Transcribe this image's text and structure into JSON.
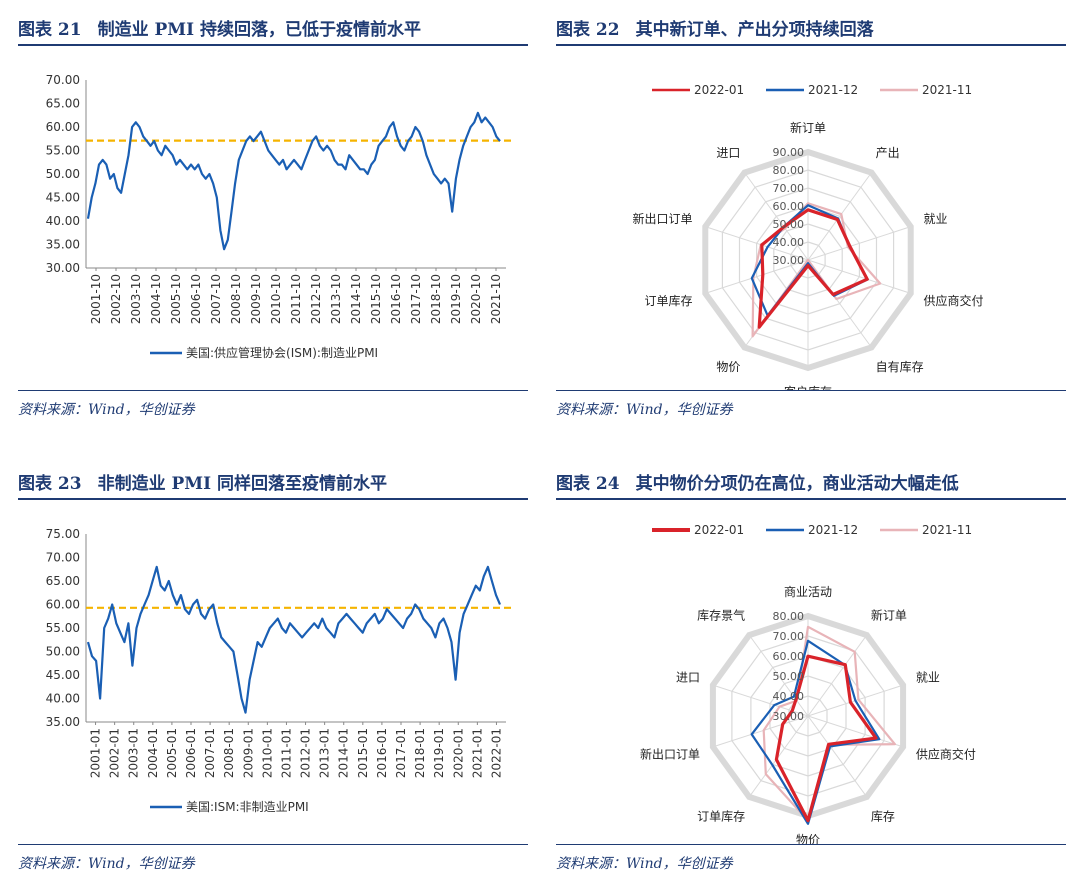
{
  "panels": [
    {
      "id": "p1",
      "title_num": "图表 21",
      "title_text": "制造业 PMI 持续回落，已低于疫情前水平",
      "source": "资料来源：Wind，华创证券"
    },
    {
      "id": "p2",
      "title_num": "图表 22",
      "title_text": "其中新订单、产出分项持续回落",
      "source": "资料来源：Wind，华创证券"
    },
    {
      "id": "p3",
      "title_num": "图表 23",
      "title_text": "非制造业 PMI 同样回落至疫情前水平",
      "source": "资料来源：Wind，华创证券"
    },
    {
      "id": "p4",
      "title_num": "图表 24",
      "title_text": "其中物价分项仍在高位，商业活动大幅走低",
      "source": "资料来源：Wind，华创证券"
    }
  ],
  "chart_data": [
    {
      "type": "line",
      "panel": "p1",
      "ylim": [
        30,
        70
      ],
      "yticks": [
        "70.00",
        "65.00",
        "60.00",
        "55.00",
        "50.00",
        "45.00",
        "40.00",
        "35.00",
        "30.00"
      ],
      "x_labels": [
        "2001-10",
        "2002-10",
        "2003-10",
        "2004-10",
        "2005-10",
        "2006-10",
        "2007-10",
        "2008-10",
        "2009-10",
        "2010-10",
        "2011-10",
        "2012-10",
        "2013-10",
        "2014-10",
        "2015-10",
        "2016-10",
        "2017-10",
        "2018-10",
        "2019-10",
        "2020-10",
        "2021-10"
      ],
      "series": [
        {
          "name": "美国:供应管理协会(ISM):制造业PMI",
          "color": "#1a5fb4",
          "values": [
            40.5,
            45,
            48,
            52,
            53,
            52,
            49,
            50,
            47,
            46,
            50,
            54,
            60,
            61,
            60,
            58,
            57,
            56,
            57,
            55,
            54,
            56,
            55,
            54,
            52,
            53,
            52,
            51,
            52,
            51,
            52,
            50,
            49,
            50,
            48,
            45,
            38,
            34,
            36,
            42,
            48,
            53,
            55,
            57,
            58,
            57,
            58,
            59,
            57,
            55,
            54,
            53,
            52,
            53,
            51,
            52,
            53,
            52,
            51,
            53,
            55,
            57,
            58,
            56,
            55,
            56,
            55,
            53,
            52,
            52,
            51,
            54,
            53,
            52,
            51,
            51,
            50,
            52,
            53,
            56,
            57,
            58,
            60,
            61,
            58,
            56,
            55,
            57,
            58,
            60,
            59,
            57,
            54,
            52,
            50,
            49,
            48,
            49,
            48,
            42,
            49,
            53,
            56,
            58,
            60,
            61,
            63,
            61,
            62,
            61,
            60,
            58,
            57
          ],
          "baseline": 57.1,
          "baseline_color": "#f5b400"
        }
      ]
    },
    {
      "type": "radar",
      "panel": "p2",
      "categories": [
        "新订单",
        "产出",
        "就业",
        "供应商交付",
        "自有库存",
        "客户库存",
        "物价",
        "订单库存",
        "新出口订单",
        "进口"
      ],
      "rlim": [
        30,
        90
      ],
      "rticks": [
        "30.00",
        "40.00",
        "50.00",
        "60.00",
        "70.00",
        "80.00",
        "90.00"
      ],
      "series": [
        {
          "name": "2022-01",
          "color": "#d9232a",
          "values": [
            57.9,
            57.8,
            54.5,
            64.6,
            53.7,
            33.1,
            76.1,
            56.4,
            57.0,
            52.8
          ]
        },
        {
          "name": "2021-12",
          "color": "#1a5fb4",
          "values": [
            60.4,
            58.5,
            54.2,
            64.9,
            54.6,
            31.8,
            68.2,
            62.8,
            53.6,
            52.9
          ]
        },
        {
          "name": "2021-11",
          "color": "#e8b4b8",
          "values": [
            61.5,
            61.5,
            53.3,
            72.2,
            56.8,
            25.1,
            82.4,
            61.9,
            57.6,
            51.6
          ]
        }
      ]
    },
    {
      "type": "line",
      "panel": "p3",
      "ylim": [
        35,
        75
      ],
      "yticks": [
        "75.00",
        "70.00",
        "65.00",
        "60.00",
        "55.00",
        "50.00",
        "45.00",
        "40.00",
        "35.00"
      ],
      "x_labels": [
        "2001-01",
        "2002-01",
        "2003-01",
        "2004-01",
        "2005-01",
        "2006-01",
        "2007-01",
        "2008-01",
        "2009-01",
        "2010-01",
        "2011-01",
        "2012-01",
        "2013-01",
        "2014-01",
        "2015-01",
        "2016-01",
        "2017-01",
        "2018-01",
        "2019-01",
        "2020-01",
        "2021-01",
        "2022-01"
      ],
      "series": [
        {
          "name": "美国:ISM:非制造业PMI",
          "color": "#1a5fb4",
          "values": [
            52,
            49,
            48,
            40,
            55,
            57,
            60,
            56,
            54,
            52,
            56,
            47,
            55,
            58,
            60,
            62,
            65,
            68,
            64,
            63,
            65,
            62,
            60,
            62,
            59,
            58,
            60,
            61,
            58,
            57,
            59,
            60,
            56,
            53,
            52,
            51,
            50,
            45,
            40,
            37,
            44,
            48,
            52,
            51,
            53,
            55,
            56,
            57,
            55,
            54,
            56,
            55,
            54,
            53,
            54,
            55,
            56,
            55,
            57,
            55,
            54,
            53,
            56,
            57,
            58,
            57,
            56,
            55,
            54,
            56,
            57,
            58,
            56,
            57,
            59,
            58,
            57,
            56,
            55,
            57,
            58,
            60,
            59,
            57,
            56,
            55,
            53,
            56,
            57,
            55,
            52,
            44,
            54,
            58,
            60,
            62,
            64,
            63,
            66,
            68,
            65,
            62,
            60
          ],
          "baseline": 59.3,
          "baseline_color": "#f5b400"
        }
      ]
    },
    {
      "type": "radar",
      "panel": "p4",
      "categories": [
        "商业活动",
        "新订单",
        "就业",
        "供应商交付",
        "库存",
        "物价",
        "订单库存",
        "新出口订单",
        "进口",
        "库存景气"
      ],
      "rlim": [
        30,
        80
      ],
      "rticks": [
        "30.00",
        "40.00",
        "50.00",
        "60.00",
        "70.00",
        "80.00"
      ],
      "series": [
        {
          "name": "2022-01",
          "color": "#d9232a",
          "values": [
            59.9,
            61.7,
            52.3,
            65.7,
            47.5,
            82.3,
            56.9,
            43.3,
            38.3,
            40.2
          ]
        },
        {
          "name": "2021-12",
          "color": "#1a5fb4",
          "values": [
            67.6,
            61.5,
            54.9,
            67.5,
            48.8,
            83.9,
            60.3,
            59.6,
            47.7,
            42.0
          ]
        },
        {
          "name": "2021-11",
          "color": "#e8b4b8",
          "values": [
            74.6,
            69.7,
            56.5,
            75.7,
            47.8,
            82.3,
            65.9,
            53.3,
            45.0,
            39.5
          ]
        }
      ]
    }
  ]
}
